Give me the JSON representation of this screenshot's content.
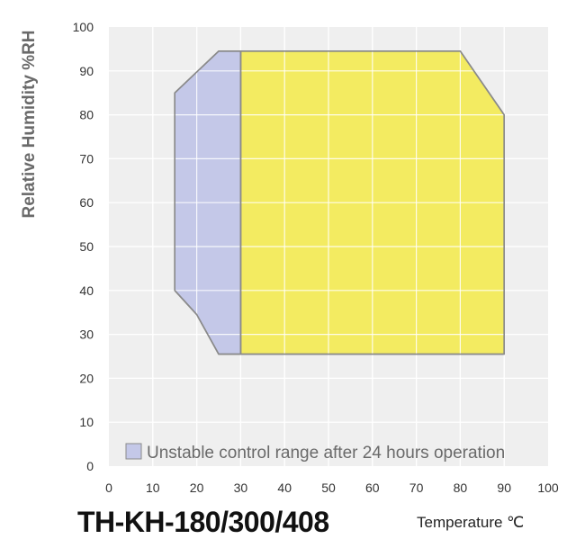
{
  "chart_data": {
    "type": "area",
    "xlabel": "Temperature ℃",
    "ylabel": "Relative Humidity %RH",
    "xlim": [
      0,
      100
    ],
    "ylim": [
      0,
      100
    ],
    "x_ticks": [
      0,
      10,
      20,
      30,
      40,
      50,
      60,
      70,
      80,
      90,
      100
    ],
    "y_ticks": [
      0,
      10,
      20,
      30,
      40,
      50,
      60,
      70,
      80,
      90,
      100
    ],
    "grid": true,
    "regions": [
      {
        "name": "Unstable control range after 24 hours operation",
        "color": "#c4c8e8",
        "points": [
          [
            15,
            40
          ],
          [
            15,
            85
          ],
          [
            25,
            94.5
          ],
          [
            30,
            94.5
          ],
          [
            30,
            25.5
          ],
          [
            25,
            25.5
          ],
          [
            20,
            34.5
          ]
        ]
      },
      {
        "name": "",
        "color": "#f3ea55",
        "points": [
          [
            30,
            25.5
          ],
          [
            30,
            94.5
          ],
          [
            80,
            94.5
          ],
          [
            90,
            80
          ],
          [
            90,
            25.5
          ]
        ]
      }
    ],
    "legend": {
      "label": "Unstable control range after 24 hours operation",
      "color": "#c4c8e8",
      "placement": "bottom"
    },
    "model_title": "TH-KH-180/300/408"
  },
  "colors": {
    "plot_background": "#efefef",
    "grid": "#ffffff",
    "outline": "#8a8a8a"
  }
}
